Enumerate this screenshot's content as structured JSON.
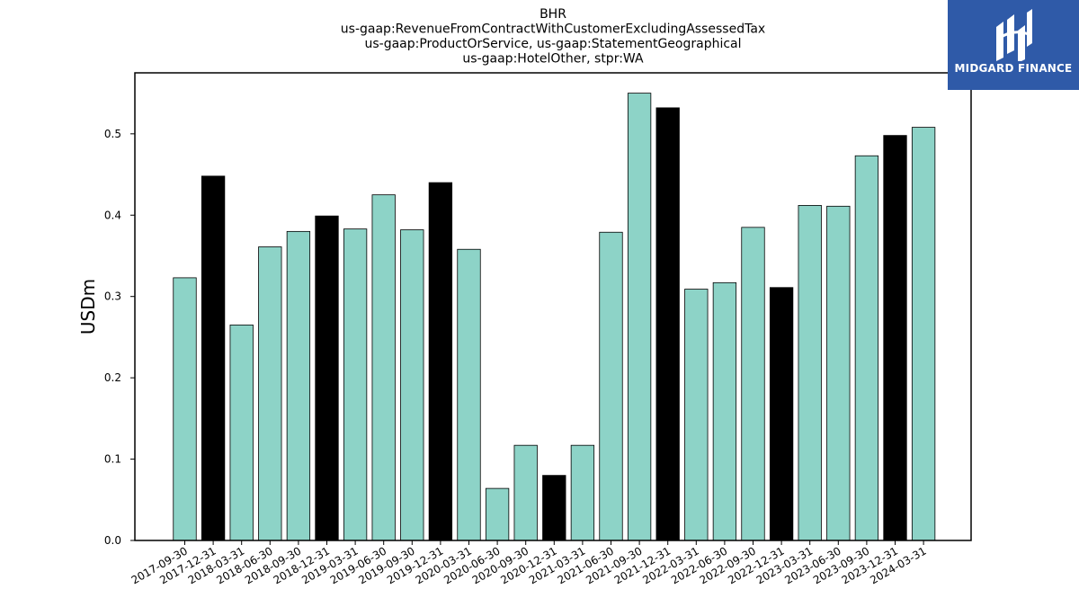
{
  "chart_data": {
    "type": "bar",
    "title_lines": [
      "BHR",
      "us-gaap:RevenueFromContractWithCustomerExcludingAssessedTax",
      "us-gaap:ProductOrService, us-gaap:StatementGeographical",
      "us-gaap:HotelOther, stpr:WA"
    ],
    "xlabel": "",
    "ylabel": "USDm",
    "ylim": [
      0,
      0.575
    ],
    "yticks": [
      "0.0",
      "0.1",
      "0.2",
      "0.3",
      "0.4",
      "0.5"
    ],
    "ytick_values": [
      0,
      0.1,
      0.2,
      0.3,
      0.4,
      0.5
    ],
    "categories": [
      "2017-09-30",
      "2017-12-31",
      "2018-03-31",
      "2018-06-30",
      "2018-09-30",
      "2018-12-31",
      "2019-03-31",
      "2019-06-30",
      "2019-09-30",
      "2019-12-31",
      "2020-03-31",
      "2020-06-30",
      "2020-09-30",
      "2020-12-31",
      "2021-03-31",
      "2021-06-30",
      "2021-09-30",
      "2021-12-31",
      "2022-03-31",
      "2022-06-30",
      "2022-09-30",
      "2022-12-31",
      "2023-03-31",
      "2023-06-30",
      "2023-09-30",
      "2023-12-31",
      "2024-03-31"
    ],
    "values": [
      0.323,
      0.448,
      0.265,
      0.361,
      0.38,
      0.399,
      0.383,
      0.425,
      0.382,
      0.44,
      0.358,
      0.064,
      0.117,
      0.08,
      0.117,
      0.379,
      0.55,
      0.532,
      0.309,
      0.317,
      0.385,
      0.311,
      0.412,
      0.411,
      0.473,
      0.498,
      0.508
    ],
    "bar_colors": [
      "#8dd3c7",
      "#000000",
      "#8dd3c7",
      "#8dd3c7",
      "#8dd3c7",
      "#000000",
      "#8dd3c7",
      "#8dd3c7",
      "#8dd3c7",
      "#000000",
      "#8dd3c7",
      "#8dd3c7",
      "#8dd3c7",
      "#000000",
      "#8dd3c7",
      "#8dd3c7",
      "#8dd3c7",
      "#000000",
      "#8dd3c7",
      "#8dd3c7",
      "#8dd3c7",
      "#000000",
      "#8dd3c7",
      "#8dd3c7",
      "#8dd3c7",
      "#000000",
      "#8dd3c7"
    ],
    "grid": false
  },
  "logo": {
    "text": "MIDGARD FINANCE",
    "background": "#2f5aa8"
  }
}
